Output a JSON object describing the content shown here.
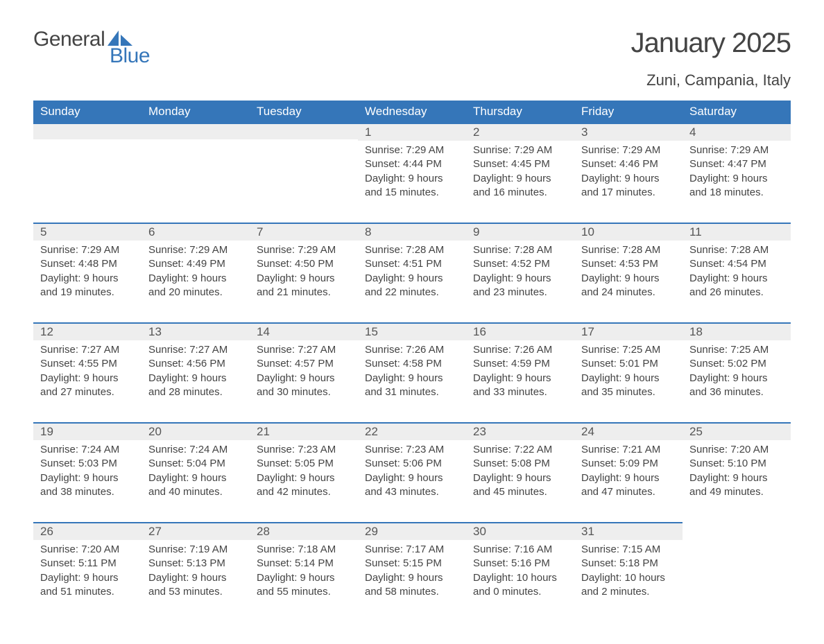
{
  "logo": {
    "text1": "General",
    "text2": "Blue"
  },
  "title": "January 2025",
  "location": "Zuni, Campania, Italy",
  "colors": {
    "header_bg": "#3576b9",
    "header_text": "#ffffff",
    "daynum_bg": "#eeeeee",
    "border_top": "#3576b9",
    "body_text": "#444444",
    "background": "#ffffff"
  },
  "typography": {
    "title_fontsize": 40,
    "location_fontsize": 22,
    "header_fontsize": 17,
    "daynum_fontsize": 17,
    "body_fontsize": 15,
    "font_family": "Arial"
  },
  "day_headers": [
    "Sunday",
    "Monday",
    "Tuesday",
    "Wednesday",
    "Thursday",
    "Friday",
    "Saturday"
  ],
  "weeks": [
    [
      null,
      null,
      null,
      {
        "n": "1",
        "sunrise": "Sunrise: 7:29 AM",
        "sunset": "Sunset: 4:44 PM",
        "dl1": "Daylight: 9 hours",
        "dl2": "and 15 minutes."
      },
      {
        "n": "2",
        "sunrise": "Sunrise: 7:29 AM",
        "sunset": "Sunset: 4:45 PM",
        "dl1": "Daylight: 9 hours",
        "dl2": "and 16 minutes."
      },
      {
        "n": "3",
        "sunrise": "Sunrise: 7:29 AM",
        "sunset": "Sunset: 4:46 PM",
        "dl1": "Daylight: 9 hours",
        "dl2": "and 17 minutes."
      },
      {
        "n": "4",
        "sunrise": "Sunrise: 7:29 AM",
        "sunset": "Sunset: 4:47 PM",
        "dl1": "Daylight: 9 hours",
        "dl2": "and 18 minutes."
      }
    ],
    [
      {
        "n": "5",
        "sunrise": "Sunrise: 7:29 AM",
        "sunset": "Sunset: 4:48 PM",
        "dl1": "Daylight: 9 hours",
        "dl2": "and 19 minutes."
      },
      {
        "n": "6",
        "sunrise": "Sunrise: 7:29 AM",
        "sunset": "Sunset: 4:49 PM",
        "dl1": "Daylight: 9 hours",
        "dl2": "and 20 minutes."
      },
      {
        "n": "7",
        "sunrise": "Sunrise: 7:29 AM",
        "sunset": "Sunset: 4:50 PM",
        "dl1": "Daylight: 9 hours",
        "dl2": "and 21 minutes."
      },
      {
        "n": "8",
        "sunrise": "Sunrise: 7:28 AM",
        "sunset": "Sunset: 4:51 PM",
        "dl1": "Daylight: 9 hours",
        "dl2": "and 22 minutes."
      },
      {
        "n": "9",
        "sunrise": "Sunrise: 7:28 AM",
        "sunset": "Sunset: 4:52 PM",
        "dl1": "Daylight: 9 hours",
        "dl2": "and 23 minutes."
      },
      {
        "n": "10",
        "sunrise": "Sunrise: 7:28 AM",
        "sunset": "Sunset: 4:53 PM",
        "dl1": "Daylight: 9 hours",
        "dl2": "and 24 minutes."
      },
      {
        "n": "11",
        "sunrise": "Sunrise: 7:28 AM",
        "sunset": "Sunset: 4:54 PM",
        "dl1": "Daylight: 9 hours",
        "dl2": "and 26 minutes."
      }
    ],
    [
      {
        "n": "12",
        "sunrise": "Sunrise: 7:27 AM",
        "sunset": "Sunset: 4:55 PM",
        "dl1": "Daylight: 9 hours",
        "dl2": "and 27 minutes."
      },
      {
        "n": "13",
        "sunrise": "Sunrise: 7:27 AM",
        "sunset": "Sunset: 4:56 PM",
        "dl1": "Daylight: 9 hours",
        "dl2": "and 28 minutes."
      },
      {
        "n": "14",
        "sunrise": "Sunrise: 7:27 AM",
        "sunset": "Sunset: 4:57 PM",
        "dl1": "Daylight: 9 hours",
        "dl2": "and 30 minutes."
      },
      {
        "n": "15",
        "sunrise": "Sunrise: 7:26 AM",
        "sunset": "Sunset: 4:58 PM",
        "dl1": "Daylight: 9 hours",
        "dl2": "and 31 minutes."
      },
      {
        "n": "16",
        "sunrise": "Sunrise: 7:26 AM",
        "sunset": "Sunset: 4:59 PM",
        "dl1": "Daylight: 9 hours",
        "dl2": "and 33 minutes."
      },
      {
        "n": "17",
        "sunrise": "Sunrise: 7:25 AM",
        "sunset": "Sunset: 5:01 PM",
        "dl1": "Daylight: 9 hours",
        "dl2": "and 35 minutes."
      },
      {
        "n": "18",
        "sunrise": "Sunrise: 7:25 AM",
        "sunset": "Sunset: 5:02 PM",
        "dl1": "Daylight: 9 hours",
        "dl2": "and 36 minutes."
      }
    ],
    [
      {
        "n": "19",
        "sunrise": "Sunrise: 7:24 AM",
        "sunset": "Sunset: 5:03 PM",
        "dl1": "Daylight: 9 hours",
        "dl2": "and 38 minutes."
      },
      {
        "n": "20",
        "sunrise": "Sunrise: 7:24 AM",
        "sunset": "Sunset: 5:04 PM",
        "dl1": "Daylight: 9 hours",
        "dl2": "and 40 minutes."
      },
      {
        "n": "21",
        "sunrise": "Sunrise: 7:23 AM",
        "sunset": "Sunset: 5:05 PM",
        "dl1": "Daylight: 9 hours",
        "dl2": "and 42 minutes."
      },
      {
        "n": "22",
        "sunrise": "Sunrise: 7:23 AM",
        "sunset": "Sunset: 5:06 PM",
        "dl1": "Daylight: 9 hours",
        "dl2": "and 43 minutes."
      },
      {
        "n": "23",
        "sunrise": "Sunrise: 7:22 AM",
        "sunset": "Sunset: 5:08 PM",
        "dl1": "Daylight: 9 hours",
        "dl2": "and 45 minutes."
      },
      {
        "n": "24",
        "sunrise": "Sunrise: 7:21 AM",
        "sunset": "Sunset: 5:09 PM",
        "dl1": "Daylight: 9 hours",
        "dl2": "and 47 minutes."
      },
      {
        "n": "25",
        "sunrise": "Sunrise: 7:20 AM",
        "sunset": "Sunset: 5:10 PM",
        "dl1": "Daylight: 9 hours",
        "dl2": "and 49 minutes."
      }
    ],
    [
      {
        "n": "26",
        "sunrise": "Sunrise: 7:20 AM",
        "sunset": "Sunset: 5:11 PM",
        "dl1": "Daylight: 9 hours",
        "dl2": "and 51 minutes."
      },
      {
        "n": "27",
        "sunrise": "Sunrise: 7:19 AM",
        "sunset": "Sunset: 5:13 PM",
        "dl1": "Daylight: 9 hours",
        "dl2": "and 53 minutes."
      },
      {
        "n": "28",
        "sunrise": "Sunrise: 7:18 AM",
        "sunset": "Sunset: 5:14 PM",
        "dl1": "Daylight: 9 hours",
        "dl2": "and 55 minutes."
      },
      {
        "n": "29",
        "sunrise": "Sunrise: 7:17 AM",
        "sunset": "Sunset: 5:15 PM",
        "dl1": "Daylight: 9 hours",
        "dl2": "and 58 minutes."
      },
      {
        "n": "30",
        "sunrise": "Sunrise: 7:16 AM",
        "sunset": "Sunset: 5:16 PM",
        "dl1": "Daylight: 10 hours",
        "dl2": "and 0 minutes."
      },
      {
        "n": "31",
        "sunrise": "Sunrise: 7:15 AM",
        "sunset": "Sunset: 5:18 PM",
        "dl1": "Daylight: 10 hours",
        "dl2": "and 2 minutes."
      },
      null
    ]
  ]
}
